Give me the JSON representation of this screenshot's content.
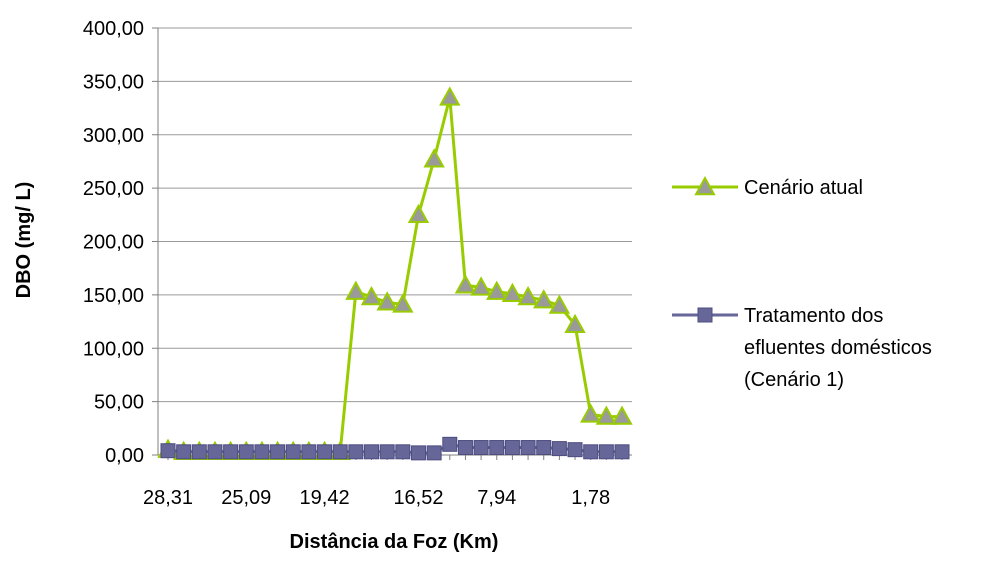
{
  "chart_data": {
    "type": "line",
    "xlabel": "Distância da Foz (Km)",
    "ylabel": "DBO (mg/ L)",
    "ylim": [
      0,
      400
    ],
    "y_ticks": [
      "0,00",
      "50,00",
      "100,00",
      "150,00",
      "200,00",
      "250,00",
      "300,00",
      "350,00",
      "400,00"
    ],
    "x_tick_labels": [
      "28,31",
      "25,09",
      "19,42",
      "16,52",
      "7,94",
      "1,78"
    ],
    "grid": true,
    "legend_position": "right",
    "series": [
      {
        "name": "Cenário atual",
        "color": "#99cc00",
        "marker": "triangle",
        "values": [
          5,
          3,
          3,
          3,
          3,
          3,
          3,
          3,
          3,
          3,
          3,
          3,
          153,
          148,
          143,
          141,
          225,
          277,
          335,
          159,
          157,
          153,
          151,
          148,
          145,
          140,
          122,
          38,
          36,
          36
        ]
      },
      {
        "name": "Tratamento dos efluentes domésticos (Cenário 1)",
        "name_lines": [
          "Tratamento dos",
          "efluentes domésticos",
          "(Cenário 1)"
        ],
        "color": "#666699",
        "marker": "square",
        "values": [
          4,
          3,
          3,
          3,
          3,
          3,
          3,
          3,
          3,
          3,
          3,
          3,
          3,
          3,
          3,
          3,
          2,
          2,
          10,
          7,
          7,
          7,
          7,
          7,
          7,
          6,
          5,
          3,
          3,
          3
        ]
      }
    ]
  }
}
